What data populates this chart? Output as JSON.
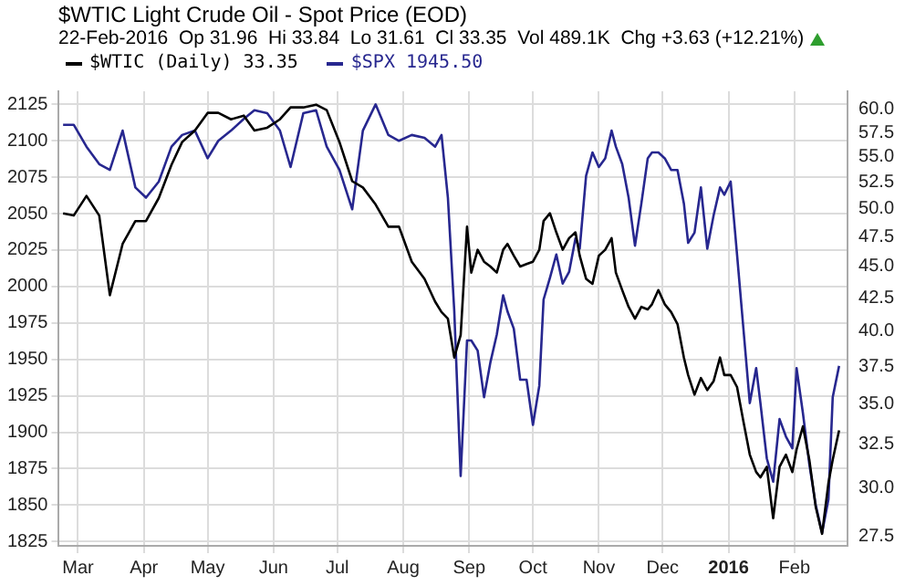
{
  "chart_data": {
    "type": "line",
    "title": "$WTIC Light Crude Oil - Spot Price (EOD)",
    "subtitle": "22-Feb-2016  Op 31.96  Hi 33.84  Lo 31.61  Cl 33.35  Vol 489.1K  Chg +3.63 (+12.21%)",
    "x": [
      "2015-02-22",
      "2015-02-27",
      "2015-03-05",
      "2015-03-11",
      "2015-03-16",
      "2015-03-22",
      "2015-03-28",
      "2015-04-02",
      "2015-04-08",
      "2015-04-14",
      "2015-04-19",
      "2015-04-25",
      "2015-05-01",
      "2015-05-06",
      "2015-05-12",
      "2015-05-18",
      "2015-05-23",
      "2015-05-29",
      "2015-06-04",
      "2015-06-09",
      "2015-06-15",
      "2015-06-21",
      "2015-06-26",
      "2015-07-02",
      "2015-07-08",
      "2015-07-13",
      "2015-07-19",
      "2015-07-25",
      "2015-07-30",
      "2015-08-05",
      "2015-08-11",
      "2015-08-16",
      "2015-08-19",
      "2015-08-22",
      "2015-08-25",
      "2015-08-28",
      "2015-08-31",
      "2015-09-02",
      "2015-09-05",
      "2015-09-08",
      "2015-09-11",
      "2015-09-14",
      "2015-09-17",
      "2015-09-19",
      "2015-09-22",
      "2015-09-25",
      "2015-09-28",
      "2015-10-01",
      "2015-10-04",
      "2015-10-06",
      "2015-10-09",
      "2015-10-12",
      "2015-10-15",
      "2015-10-18",
      "2015-10-21",
      "2015-10-23",
      "2015-10-26",
      "2015-10-29",
      "2015-11-01",
      "2015-11-04",
      "2015-11-07",
      "2015-11-09",
      "2015-11-12",
      "2015-11-15",
      "2015-11-18",
      "2015-11-21",
      "2015-11-24",
      "2015-11-26",
      "2015-11-29",
      "2015-12-02",
      "2015-12-05",
      "2015-12-08",
      "2015-12-11",
      "2015-12-13",
      "2015-12-16",
      "2015-12-19",
      "2015-12-22",
      "2015-12-25",
      "2015-12-28",
      "2015-12-30",
      "2016-01-02",
      "2016-01-05",
      "2016-01-08",
      "2016-01-11",
      "2016-01-14",
      "2016-01-16",
      "2016-01-19",
      "2016-01-22",
      "2016-01-25",
      "2016-01-28",
      "2016-01-31",
      "2016-02-02",
      "2016-02-05",
      "2016-02-08",
      "2016-02-11",
      "2016-02-14",
      "2016-02-17",
      "2016-02-19",
      "2016-02-22"
    ],
    "series": [
      {
        "name": "$WTIC (Daily) 33.35",
        "color": "#000000",
        "axis": "y2",
        "values": [
          49.6,
          49.4,
          51.2,
          49.4,
          42.7,
          46.9,
          48.9,
          48.9,
          51.0,
          54.2,
          56.5,
          57.7,
          59.6,
          59.6,
          58.9,
          59.3,
          57.7,
          58.0,
          58.9,
          60.2,
          60.2,
          60.5,
          59.9,
          56.5,
          52.6,
          52.0,
          50.4,
          48.4,
          48.4,
          45.4,
          44.0,
          42.2,
          41.4,
          40.9,
          38.1,
          39.7,
          48.4,
          44.5,
          46.4,
          45.4,
          45.0,
          44.5,
          46.4,
          46.9,
          45.9,
          45.0,
          45.2,
          45.4,
          46.4,
          48.9,
          49.6,
          47.9,
          46.4,
          47.4,
          47.9,
          45.9,
          44.0,
          43.6,
          45.9,
          46.4,
          47.4,
          44.5,
          43.1,
          41.8,
          40.9,
          41.8,
          41.6,
          42.0,
          43.1,
          42.0,
          41.4,
          40.5,
          38.1,
          36.9,
          35.6,
          36.7,
          35.9,
          36.5,
          38.1,
          36.9,
          36.9,
          36.1,
          33.9,
          31.9,
          30.9,
          30.6,
          31.2,
          28.4,
          31.2,
          31.9,
          30.9,
          32.2,
          33.6,
          31.6,
          29.0,
          27.6,
          30.3,
          31.6,
          33.35
        ]
      },
      {
        "name": "$SPX 1945.50",
        "color": "#27278f",
        "axis": "y",
        "values": [
          2111,
          2111,
          2096,
          2084,
          2080,
          2107,
          2068,
          2061,
          2072,
          2096,
          2104,
          2107,
          2088,
          2100,
          2107,
          2115,
          2121,
          2119,
          2107,
          2082,
          2119,
          2121,
          2096,
          2080,
          2053,
          2107,
          2125,
          2104,
          2100,
          2104,
          2102,
          2096,
          2104,
          2061,
          1983,
          1870,
          1963,
          1963,
          1956,
          1924,
          1948,
          1967,
          1994,
          1983,
          1971,
          1936,
          1936,
          1905,
          1932,
          1991,
          2006,
          2022,
          2002,
          2010,
          2033,
          2026,
          2076,
          2092,
          2082,
          2088,
          2107,
          2096,
          2084,
          2061,
          2028,
          2057,
          2088,
          2092,
          2092,
          2088,
          2080,
          2080,
          2057,
          2030,
          2037,
          2068,
          2026,
          2049,
          2068,
          2063,
          2072,
          2022,
          1971,
          1920,
          1944,
          1920,
          1882,
          1866,
          1909,
          1897,
          1889,
          1944,
          1913,
          1878,
          1850,
          1831,
          1854,
          1924,
          1945.5
        ]
      }
    ],
    "xlim": [
      "2015-02-20",
      "2016-02-26"
    ],
    "xticks": [
      {
        "value": "2015-03-01",
        "label": "Mar"
      },
      {
        "value": "2015-04-01",
        "label": "Apr"
      },
      {
        "value": "2015-05-01",
        "label": "May"
      },
      {
        "value": "2015-06-01",
        "label": "Jun"
      },
      {
        "value": "2015-07-01",
        "label": "Jul"
      },
      {
        "value": "2015-08-01",
        "label": "Aug"
      },
      {
        "value": "2015-09-01",
        "label": "Sep"
      },
      {
        "value": "2015-10-01",
        "label": "Oct"
      },
      {
        "value": "2015-11-01",
        "label": "Nov"
      },
      {
        "value": "2015-12-01",
        "label": "Dec"
      },
      {
        "value": "2016-01-01",
        "label": "2016"
      },
      {
        "value": "2016-02-01",
        "label": "Feb"
      }
    ],
    "ylim": [
      1822,
      2134
    ],
    "yticks": [
      1825,
      1850,
      1875,
      1900,
      1925,
      1950,
      1975,
      2000,
      2025,
      2050,
      2075,
      2100,
      2125
    ],
    "y2lim": [
      27,
      62
    ],
    "y2ticks": [
      {
        "value": 27.5,
        "label": "27.5"
      },
      {
        "value": 30,
        "label": "30.0"
      },
      {
        "value": 32.5,
        "label": "32.5"
      },
      {
        "value": 35,
        "label": "35.0"
      },
      {
        "value": 37.5,
        "label": "37.5"
      },
      {
        "value": 40,
        "label": "40.0"
      },
      {
        "value": 42.5,
        "label": "42.5"
      },
      {
        "value": 45,
        "label": "45.0"
      },
      {
        "value": 47.5,
        "label": "47.5"
      },
      {
        "value": 50,
        "label": "50.0"
      },
      {
        "value": 52.5,
        "label": "52.5"
      },
      {
        "value": 55,
        "label": "55.0"
      },
      {
        "value": 57.5,
        "label": "57.5"
      },
      {
        "value": 60,
        "label": "60.0"
      }
    ],
    "log": "y2",
    "grid": true,
    "legend": "top left",
    "marker": "none",
    "line_style": "solid"
  }
}
